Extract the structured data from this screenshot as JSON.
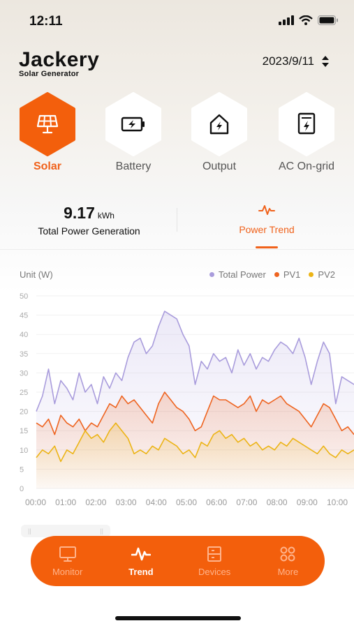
{
  "status_bar": {
    "time": "12:11"
  },
  "brand": {
    "name": "Jackery",
    "subtitle": "Solar Generator"
  },
  "date_picker": {
    "value": "2023/9/11"
  },
  "categories": [
    {
      "label": "Solar",
      "icon": "solar-panel-icon",
      "active": true
    },
    {
      "label": "Battery",
      "icon": "battery-icon",
      "active": false
    },
    {
      "label": "Output",
      "icon": "house-bolt-icon",
      "active": false
    },
    {
      "label": "AC On-grid",
      "icon": "grid-bolt-icon",
      "active": false
    }
  ],
  "summary": {
    "value": "9.17",
    "unit": "kWh",
    "label": "Total Power Generation"
  },
  "trend_tab": {
    "label": "Power Trend"
  },
  "colors": {
    "accent": "#f35f0c",
    "total": "#a99cdc",
    "pv1": "#ee6420",
    "pv2": "#ecb416"
  },
  "chart_data": {
    "type": "line",
    "unit_label": "Unit (W)",
    "ylim": [
      0,
      50
    ],
    "y_ticks": [
      "0",
      "5",
      "10",
      "15",
      "20",
      "25",
      "30",
      "35",
      "40",
      "45",
      "50"
    ],
    "x_tick_labels": [
      "00:00",
      "01:00",
      "02:00",
      "03:00",
      "04:00",
      "05:00",
      "06:00",
      "07:00",
      "08:00",
      "09:00",
      "10:00"
    ],
    "x_range": [
      0,
      10.4
    ],
    "grid": true,
    "legend": "top-right",
    "series": [
      {
        "name": "Total Power",
        "color": "#a99cdc",
        "x": [
          0,
          0.2,
          0.4,
          0.6,
          0.8,
          1.0,
          1.2,
          1.4,
          1.6,
          1.8,
          2.0,
          2.2,
          2.4,
          2.6,
          2.8,
          3.0,
          3.2,
          3.4,
          3.6,
          3.8,
          4.0,
          4.2,
          4.4,
          4.6,
          4.8,
          5.0,
          5.2,
          5.4,
          5.6,
          5.8,
          6.0,
          6.2,
          6.4,
          6.6,
          6.8,
          7.0,
          7.2,
          7.4,
          7.6,
          7.8,
          8.0,
          8.2,
          8.4,
          8.6,
          8.8,
          9.0,
          9.2,
          9.4,
          9.6,
          9.8,
          10.0,
          10.2,
          10.4
        ],
        "y": [
          20,
          24,
          31,
          22,
          28,
          26,
          23,
          30,
          25,
          27,
          22,
          29,
          26,
          30,
          28,
          34,
          38,
          39,
          35,
          37,
          42,
          46,
          45,
          44,
          40,
          37,
          27,
          33,
          31,
          35,
          33,
          34,
          30,
          36,
          32,
          35,
          31,
          34,
          33,
          36,
          38,
          37,
          35,
          39,
          34,
          27,
          33,
          38,
          35,
          22,
          29,
          28,
          27
        ]
      },
      {
        "name": "PV1",
        "color": "#ee6420",
        "x": [
          0,
          0.2,
          0.4,
          0.6,
          0.8,
          1.0,
          1.2,
          1.4,
          1.6,
          1.8,
          2.0,
          2.2,
          2.4,
          2.6,
          2.8,
          3.0,
          3.2,
          3.4,
          3.6,
          3.8,
          4.0,
          4.2,
          4.4,
          4.6,
          4.8,
          5.0,
          5.2,
          5.4,
          5.6,
          5.8,
          6.0,
          6.2,
          6.4,
          6.6,
          6.8,
          7.0,
          7.2,
          7.4,
          7.6,
          7.8,
          8.0,
          8.2,
          8.4,
          8.6,
          8.8,
          9.0,
          9.2,
          9.4,
          9.6,
          9.8,
          10.0,
          10.2,
          10.4
        ],
        "y": [
          17,
          16,
          18,
          14,
          19,
          17,
          16,
          18,
          15,
          17,
          16,
          19,
          22,
          21,
          24,
          22,
          23,
          21,
          19,
          17,
          22,
          25,
          23,
          21,
          20,
          18,
          15,
          16,
          20,
          24,
          23,
          23,
          22,
          21,
          22,
          24,
          20,
          23,
          22,
          23,
          24,
          22,
          21,
          20,
          18,
          16,
          19,
          22,
          21,
          18,
          15,
          16,
          14
        ]
      },
      {
        "name": "PV2",
        "color": "#ecb416",
        "x": [
          0,
          0.2,
          0.4,
          0.6,
          0.8,
          1.0,
          1.2,
          1.4,
          1.6,
          1.8,
          2.0,
          2.2,
          2.4,
          2.6,
          2.8,
          3.0,
          3.2,
          3.4,
          3.6,
          3.8,
          4.0,
          4.2,
          4.4,
          4.6,
          4.8,
          5.0,
          5.2,
          5.4,
          5.6,
          5.8,
          6.0,
          6.2,
          6.4,
          6.6,
          6.8,
          7.0,
          7.2,
          7.4,
          7.6,
          7.8,
          8.0,
          8.2,
          8.4,
          8.6,
          8.8,
          9.0,
          9.2,
          9.4,
          9.6,
          9.8,
          10.0,
          10.2,
          10.4
        ],
        "y": [
          8,
          10,
          9,
          11,
          7,
          10,
          9,
          12,
          15,
          13,
          14,
          12,
          15,
          17,
          15,
          13,
          9,
          10,
          9,
          11,
          10,
          13,
          12,
          11,
          9,
          10,
          8,
          12,
          11,
          14,
          15,
          13,
          14,
          12,
          13,
          11,
          12,
          10,
          11,
          10,
          12,
          11,
          13,
          12,
          11,
          10,
          9,
          11,
          9,
          8,
          10,
          9,
          10
        ]
      }
    ]
  },
  "nav": [
    {
      "label": "Monitor",
      "icon": "monitor-icon",
      "active": false
    },
    {
      "label": "Trend",
      "icon": "pulse-icon",
      "active": true
    },
    {
      "label": "Devices",
      "icon": "devices-icon",
      "active": false
    },
    {
      "label": "More",
      "icon": "more-grid-icon",
      "active": false
    }
  ]
}
